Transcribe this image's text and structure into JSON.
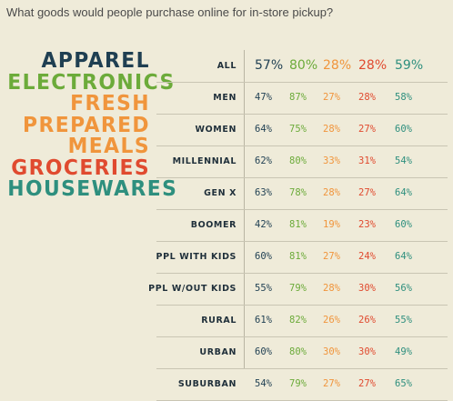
{
  "title": "What goods would people purchase online for in-store pickup?",
  "colors": {
    "apparel": "#1f3f52",
    "electronics": "#6cab3a",
    "fresh_prepared": "#f0953c",
    "groceries": "#e04a2f",
    "housewares": "#2e8f7e",
    "background": "#efebd9"
  },
  "legend": [
    {
      "label": "APPAREL",
      "color": "#1f3f52"
    },
    {
      "label": "ELECTRONICS",
      "color": "#6cab3a"
    },
    {
      "label": "FRESH",
      "color": "#f0953c"
    },
    {
      "label": "PREPARED",
      "color": "#f0953c"
    },
    {
      "label": "MEALS",
      "color": "#f0953c"
    },
    {
      "label": "GROCERIES",
      "color": "#e04a2f"
    },
    {
      "label": "HOUSEWARES",
      "color": "#2e8f7e"
    }
  ],
  "chart_data": {
    "type": "table",
    "title": "What goods would people purchase online for in-store pickup?",
    "series": [
      {
        "name": "APPAREL",
        "color": "#1f3f52"
      },
      {
        "name": "ELECTRONICS",
        "color": "#6cab3a"
      },
      {
        "name": "FRESH PREPARED MEALS",
        "color": "#f0953c"
      },
      {
        "name": "GROCERIES",
        "color": "#e04a2f"
      },
      {
        "name": "HOUSEWARES",
        "color": "#2e8f7e"
      }
    ],
    "rows": [
      {
        "label": "ALL",
        "values": [
          "57%",
          "80%",
          "28%",
          "28%",
          "59%"
        ]
      },
      {
        "label": "MEN",
        "values": [
          "47%",
          "87%",
          "27%",
          "28%",
          "58%"
        ]
      },
      {
        "label": "WOMEN",
        "values": [
          "64%",
          "75%",
          "28%",
          "27%",
          "60%"
        ]
      },
      {
        "label": "MILLENNIAL",
        "values": [
          "62%",
          "80%",
          "33%",
          "31%",
          "54%"
        ]
      },
      {
        "label": "GEN X",
        "values": [
          "63%",
          "78%",
          "28%",
          "27%",
          "64%"
        ]
      },
      {
        "label": "BOOMER",
        "values": [
          "42%",
          "81%",
          "19%",
          "23%",
          "60%"
        ]
      },
      {
        "label": "PPL WITH KIDS",
        "values": [
          "60%",
          "81%",
          "27%",
          "24%",
          "64%"
        ]
      },
      {
        "label": "PPL W/OUT KIDS",
        "values": [
          "55%",
          "79%",
          "28%",
          "30%",
          "56%"
        ]
      },
      {
        "label": "RURAL",
        "values": [
          "61%",
          "82%",
          "26%",
          "26%",
          "55%"
        ]
      },
      {
        "label": "URBAN",
        "values": [
          "60%",
          "80%",
          "30%",
          "30%",
          "49%"
        ]
      },
      {
        "label": "SUBURBAN",
        "values": [
          "54%",
          "79%",
          "27%",
          "27%",
          "65%"
        ]
      }
    ]
  }
}
